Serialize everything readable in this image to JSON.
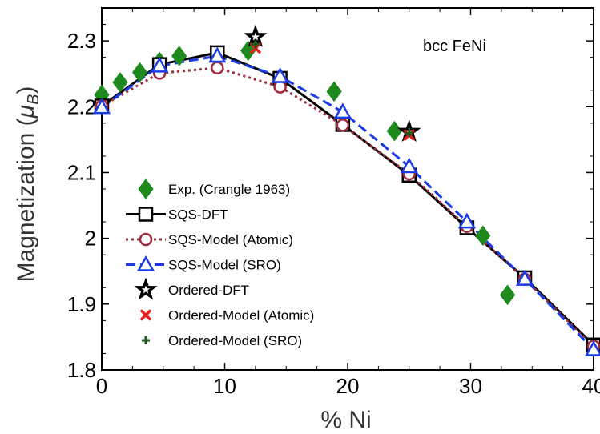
{
  "chart_data": {
    "type": "line",
    "title": "",
    "annotation": "bcc FeNi",
    "xlabel": "% Ni",
    "ylabel_main": "Magnetization (",
    "ylabel_mu": "μ",
    "ylabel_sub": "B",
    "ylabel_close": ")",
    "xlim": [
      0,
      40
    ],
    "ylim": [
      1.8,
      2.35
    ],
    "xticks": [
      0,
      10,
      20,
      30,
      40
    ],
    "xtick_labels": [
      "0",
      "10",
      "20",
      "30",
      "40"
    ],
    "yticks": [
      1.8,
      1.9,
      2.0,
      2.1,
      2.2,
      2.3
    ],
    "ytick_labels": [
      "1.8",
      "1.9",
      "2",
      "2.1",
      "2.2",
      "2.3"
    ],
    "grid": false,
    "legend_position": "bottom-left",
    "series": [
      {
        "name": "Exp. (Crangle 1963)",
        "style": "marker",
        "marker": "diamond",
        "color": "#1e8a1e",
        "x": [
          0,
          1.5,
          3.1,
          4.7,
          6.3,
          11.9,
          18.9,
          23.8,
          31.0,
          33.0
        ],
        "y": [
          2.218,
          2.237,
          2.252,
          2.268,
          2.277,
          2.285,
          2.223,
          2.163,
          2.004,
          1.914
        ]
      },
      {
        "name": "SQS-DFT",
        "style": "line",
        "dash": "solid",
        "marker": "square",
        "color": "#000000",
        "x": [
          0,
          4.7,
          9.4,
          14.5,
          19.6,
          25.0,
          29.7,
          34.4,
          40
        ],
        "y": [
          2.201,
          2.264,
          2.282,
          2.243,
          2.173,
          2.096,
          2.016,
          1.94,
          1.838
        ]
      },
      {
        "name": "SQS-Model (Atomic)",
        "style": "line",
        "dash": "dotted",
        "marker": "circle",
        "color": "#9e2a3a",
        "x": [
          0,
          4.7,
          9.4,
          14.5,
          19.6,
          25.0,
          29.7,
          34.4,
          40
        ],
        "y": [
          2.201,
          2.251,
          2.259,
          2.23,
          2.172,
          2.098,
          2.018,
          1.938,
          1.836
        ]
      },
      {
        "name": "SQS-Model (SRO)",
        "style": "line",
        "dash": "dashed",
        "marker": "triangle",
        "color": "#1a3be6",
        "x": [
          0,
          4.7,
          9.4,
          14.5,
          19.6,
          25.0,
          29.7,
          34.4,
          40
        ],
        "y": [
          2.199,
          2.262,
          2.277,
          2.246,
          2.192,
          2.109,
          2.025,
          1.938,
          1.831
        ]
      },
      {
        "name": "Ordered-DFT",
        "style": "marker",
        "marker": "star",
        "color": "#000000",
        "x": [
          12.5,
          25.0
        ],
        "y": [
          2.306,
          2.162
        ]
      },
      {
        "name": "Ordered-Model (Atomic)",
        "style": "marker",
        "marker": "x",
        "color": "#e61e1e",
        "x": [
          12.5,
          25.0
        ],
        "y": [
          2.289,
          2.157
        ]
      },
      {
        "name": "Ordered-Model (SRO)",
        "style": "marker",
        "marker": "plus",
        "color": "#1e5a1e",
        "x": [
          12.5,
          25.0
        ],
        "y": [
          2.295,
          2.16
        ]
      }
    ]
  }
}
